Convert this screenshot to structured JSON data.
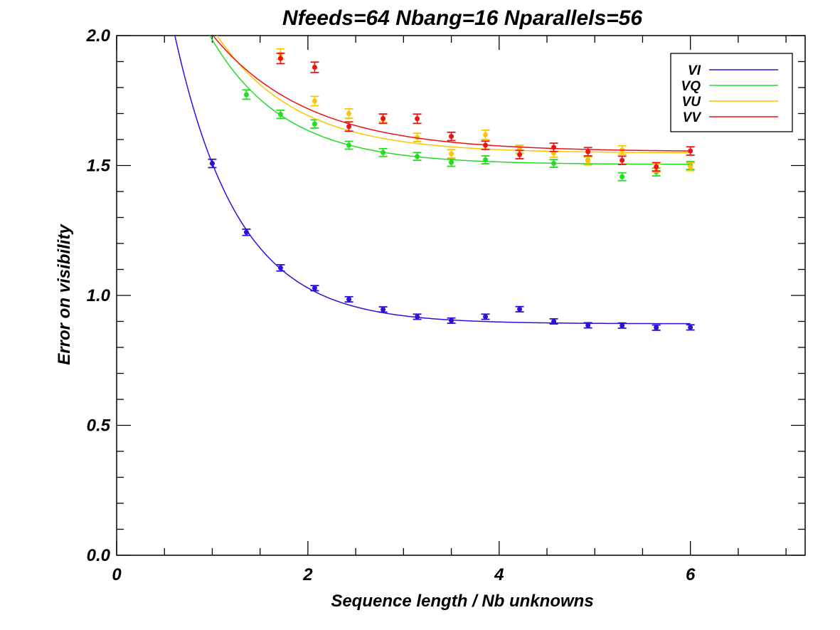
{
  "chart_data": {
    "type": "scatter",
    "title": "Nfeeds=64   Nbang=16   Nparallels=56",
    "xlabel": "Sequence length / Nb unknowns",
    "ylabel": "Error on visibility",
    "xlim": [
      0,
      7.2
    ],
    "ylim": [
      0,
      2.0
    ],
    "xticks": [
      "0",
      "2",
      "4",
      "6"
    ],
    "yticks": [
      "0.0",
      "0.5",
      "1.0",
      "1.5",
      "2.0"
    ],
    "grid": false,
    "legend_position": "top-right",
    "x": [
      1.0,
      1.357,
      1.714,
      2.071,
      2.429,
      2.786,
      3.143,
      3.5,
      3.857,
      4.214,
      4.571,
      4.929,
      5.286,
      5.643,
      6.0
    ],
    "series": [
      {
        "name": "VI",
        "color": "#2a12d8",
        "values": [
          1.508,
          1.243,
          1.106,
          1.028,
          0.985,
          0.946,
          0.918,
          0.903,
          0.918,
          0.947,
          0.9,
          0.885,
          0.884,
          0.876,
          0.877
        ],
        "errors": [
          0.016,
          0.012,
          0.012,
          0.01,
          0.01,
          0.01,
          0.01,
          0.01,
          0.01,
          0.01,
          0.01,
          0.01,
          0.01,
          0.01,
          0.01
        ],
        "fit": {
          "a": 0.891,
          "b": 0.617,
          "c": 1.5
        }
      },
      {
        "name": "VQ",
        "color": "#22dd22",
        "values": [
          null,
          1.773,
          1.697,
          1.66,
          1.578,
          1.55,
          1.535,
          1.512,
          1.522,
          1.562,
          1.508,
          1.52,
          1.457,
          1.475,
          1.5
        ],
        "errors": [
          null,
          0.018,
          0.016,
          0.016,
          0.015,
          0.015,
          0.015,
          0.015,
          0.015,
          0.015,
          0.015,
          0.015,
          0.015,
          0.015,
          0.015
        ],
        "fit": {
          "a": 1.504,
          "b": 0.48,
          "c": 1.3
        }
      },
      {
        "name": "VU",
        "color": "#ffc400",
        "values": [
          null,
          null,
          1.929,
          1.748,
          1.7,
          1.683,
          1.608,
          1.545,
          1.618,
          1.562,
          1.548,
          1.517,
          1.56,
          1.49,
          1.495
        ],
        "errors": [
          null,
          null,
          0.02,
          0.018,
          0.018,
          0.016,
          0.016,
          0.016,
          0.018,
          0.016,
          0.016,
          0.015,
          0.016,
          0.015,
          0.015
        ],
        "fit": {
          "a": 1.548,
          "b": 0.48,
          "c": 1.2
        }
      },
      {
        "name": "VV",
        "color": "#ee1111",
        "values": [
          null,
          null,
          1.912,
          1.878,
          1.65,
          1.68,
          1.68,
          1.612,
          1.578,
          1.542,
          1.57,
          1.553,
          1.52,
          1.495,
          1.556
        ],
        "errors": [
          null,
          null,
          0.02,
          0.02,
          0.018,
          0.018,
          0.018,
          0.016,
          0.016,
          0.016,
          0.016,
          0.016,
          0.016,
          0.016,
          0.016
        ],
        "fit": {
          "a": 1.553,
          "b": 0.45,
          "c": 1.0
        }
      }
    ]
  }
}
